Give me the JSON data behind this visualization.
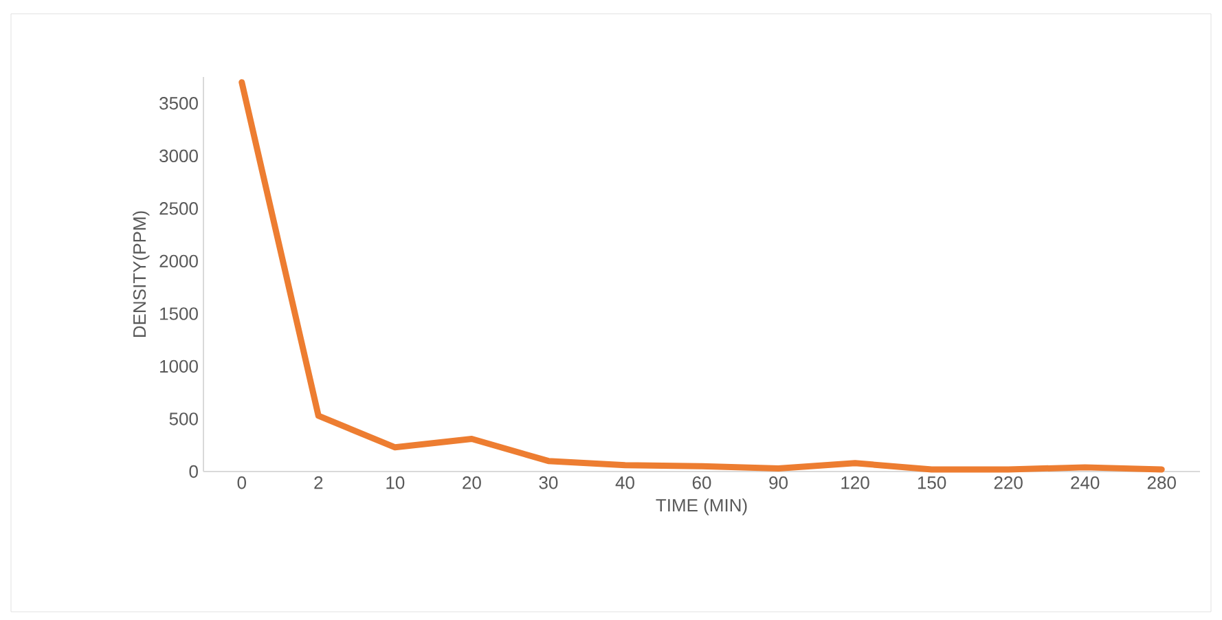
{
  "chart_data": {
    "type": "line",
    "xlabel": "TIME (MIN)",
    "ylabel": "DENSITY(PPM)",
    "categories": [
      "0",
      "2",
      "10",
      "20",
      "30",
      "40",
      "60",
      "90",
      "120",
      "150",
      "220",
      "240",
      "280"
    ],
    "values": [
      3700,
      530,
      230,
      310,
      100,
      60,
      50,
      30,
      80,
      20,
      20,
      40,
      20
    ],
    "color": "#ed7d31",
    "ylim": [
      0,
      3750
    ],
    "yticks": [
      0,
      500,
      1000,
      1500,
      2000,
      2500,
      3000,
      3500
    ],
    "grid": false,
    "marker": "none",
    "line_style": "solid"
  }
}
